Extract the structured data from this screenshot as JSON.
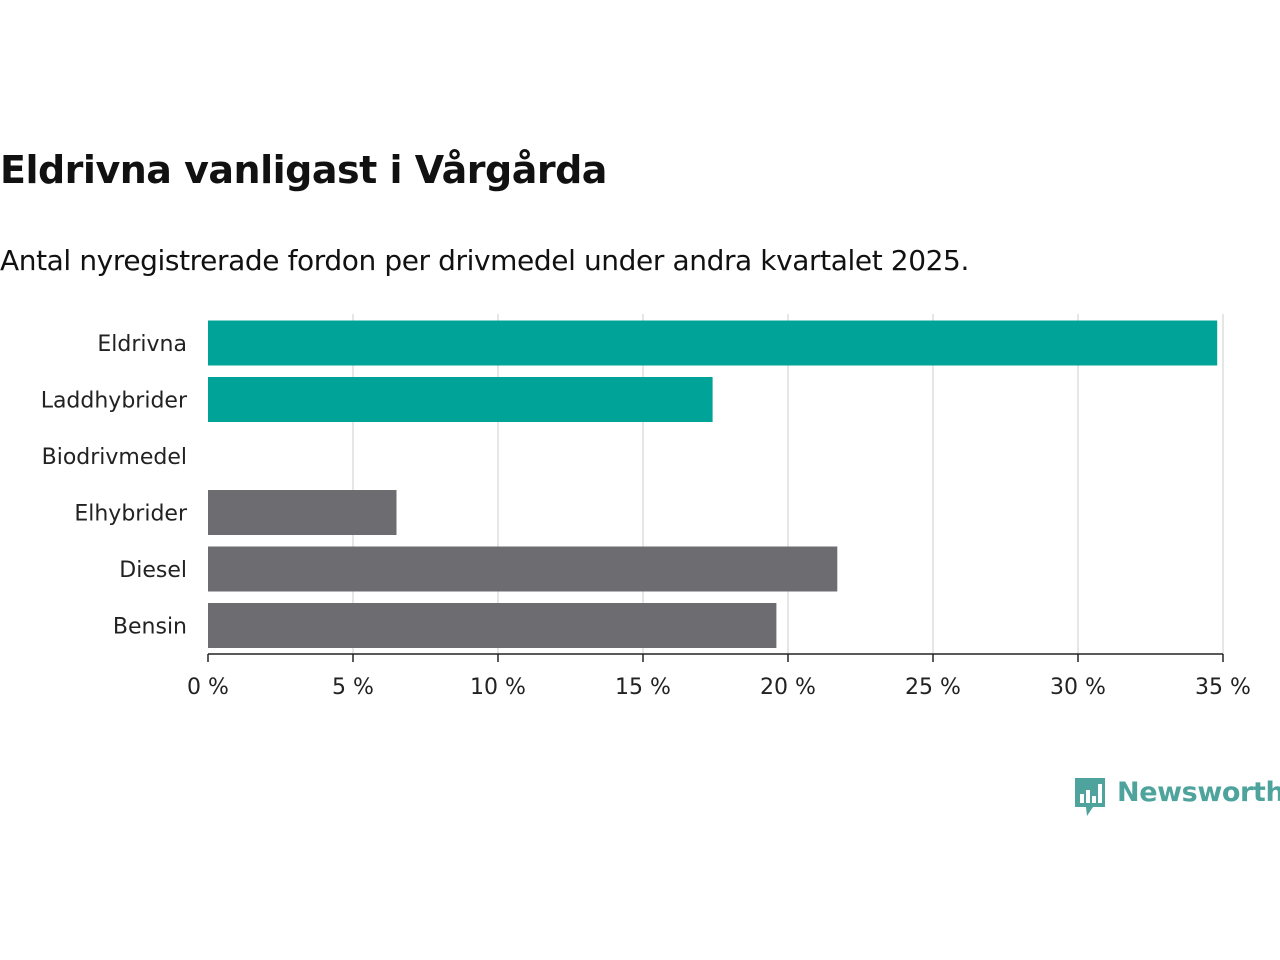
{
  "title": "Eldrivna vanligast i Vårgårda",
  "subtitle": "Antal nyregistrerade fordon per drivmedel under andra kvartalet 2025.",
  "brand": "Newsworthy",
  "colors": {
    "highlight": "#00a398",
    "neutral": "#6d6c71",
    "brand": "#4fa39d",
    "grid": "#dddddd"
  },
  "chart_data": {
    "type": "bar",
    "orientation": "horizontal",
    "categories": [
      "Eldrivna",
      "Laddhybrider",
      "Biodrivmedel",
      "Elhybrider",
      "Diesel",
      "Bensin"
    ],
    "values": [
      34.8,
      17.4,
      0,
      6.5,
      21.7,
      19.6
    ],
    "bar_colors": [
      "#00a398",
      "#00a398",
      "#00a398",
      "#6d6c71",
      "#6d6c71",
      "#6d6c71"
    ],
    "xlim": [
      0,
      35
    ],
    "xticks": [
      0,
      5,
      10,
      15,
      20,
      25,
      30,
      35
    ],
    "tick_labels": [
      "0 %",
      "5 %",
      "10 %",
      "15 %",
      "20 %",
      "25 %",
      "30 %",
      "35 %"
    ],
    "grid": true,
    "xlabel": "",
    "ylabel": ""
  }
}
